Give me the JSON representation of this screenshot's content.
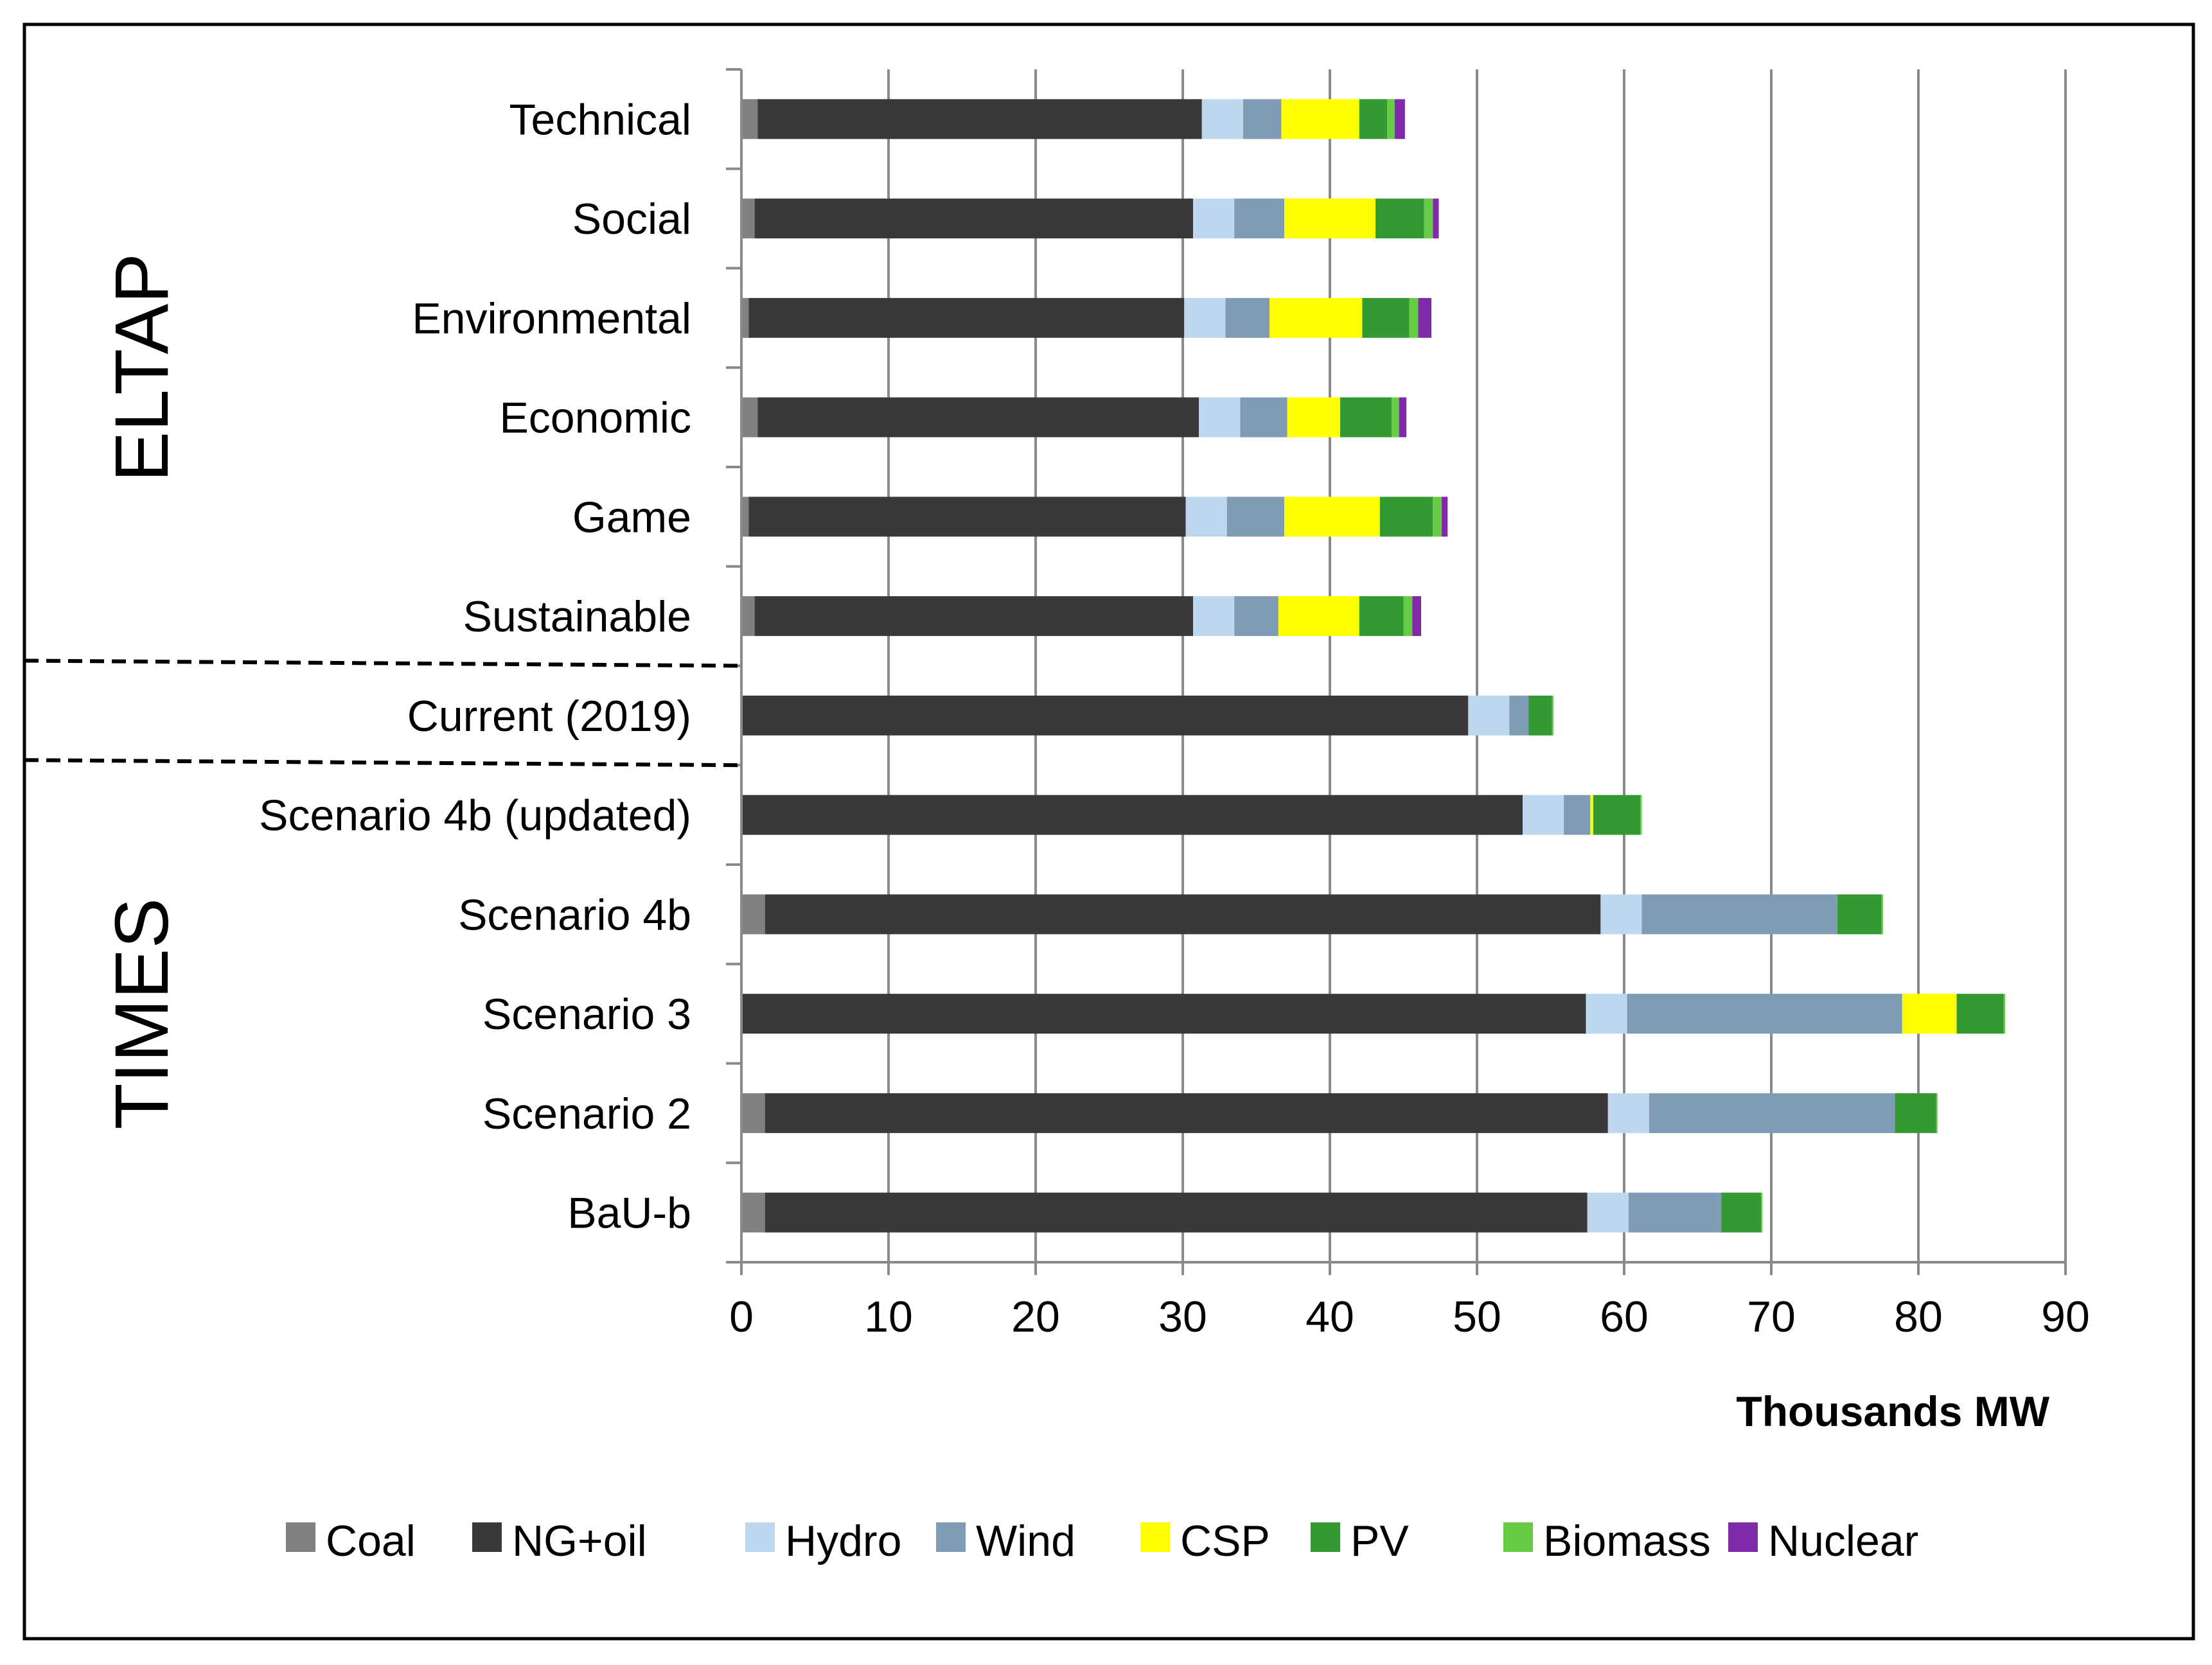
{
  "chart_data": {
    "type": "bar",
    "orientation": "horizontal",
    "stacked": true,
    "categories": [
      "Technical",
      "Social",
      "Environmental",
      "Economic",
      "Game",
      "Sustainable",
      "Current (2019)",
      "Scenario 4b (updated)",
      "Scenario 4b",
      "Scenario 3",
      "Scenario 2",
      "BaU-b"
    ],
    "groups": [
      {
        "label": "ELTAP",
        "categories": [
          "Technical",
          "Social",
          "Environmental",
          "Economic",
          "Game",
          "Sustainable"
        ]
      },
      {
        "label": "TIMES",
        "categories": [
          "Scenario 4b (updated)",
          "Scenario 4b",
          "Scenario 3",
          "Scenario 2",
          "BaU-b"
        ]
      }
    ],
    "series": [
      {
        "name": "Coal",
        "color": "#808080",
        "values": [
          1.1,
          0.9,
          0.5,
          1.1,
          0.5,
          0.9,
          0.0,
          0.0,
          1.6,
          0.0,
          1.6,
          1.6
        ]
      },
      {
        "name": "NG+oil",
        "color": "#3a3838",
        "values": [
          30.2,
          29.8,
          29.6,
          30.0,
          29.7,
          29.8,
          49.4,
          53.1,
          56.8,
          57.4,
          57.3,
          55.9
        ]
      },
      {
        "name": "Hydro",
        "color": "#bdd7ee",
        "values": [
          2.8,
          2.8,
          2.8,
          2.8,
          2.8,
          2.8,
          2.8,
          2.8,
          2.8,
          2.8,
          2.8,
          2.8
        ]
      },
      {
        "name": "Wind",
        "color": "#7f9bb5",
        "values": [
          2.6,
          3.4,
          3.0,
          3.2,
          3.9,
          3.0,
          1.3,
          1.8,
          13.3,
          18.7,
          16.7,
          6.3
        ]
      },
      {
        "name": "CSP",
        "color": "#ffff00",
        "values": [
          5.3,
          6.2,
          6.3,
          3.6,
          6.5,
          5.5,
          0.0,
          0.2,
          0.0,
          3.7,
          0.0,
          0.0
        ]
      },
      {
        "name": "PV",
        "color": "#339933",
        "values": [
          1.9,
          3.3,
          3.2,
          3.5,
          3.6,
          3.0,
          1.6,
          3.2,
          3.0,
          3.2,
          2.8,
          2.7
        ]
      },
      {
        "name": "Biomass",
        "color": "#66cc44",
        "values": [
          0.5,
          0.6,
          0.6,
          0.5,
          0.6,
          0.6,
          0.1,
          0.1,
          0.1,
          0.1,
          0.1,
          0.1
        ]
      },
      {
        "name": "Nuclear",
        "color": "#7f2aa9",
        "values": [
          0.7,
          0.4,
          0.9,
          0.5,
          0.4,
          0.6,
          0.0,
          0.0,
          0.0,
          0.0,
          0.0,
          0.0
        ]
      }
    ],
    "xlabel": "Thousands MW",
    "xlim": [
      0,
      90
    ],
    "xticks": [
      0,
      10,
      20,
      30,
      40,
      50,
      60,
      70,
      80,
      90
    ],
    "grid": "vertical",
    "legend_position": "bottom"
  }
}
